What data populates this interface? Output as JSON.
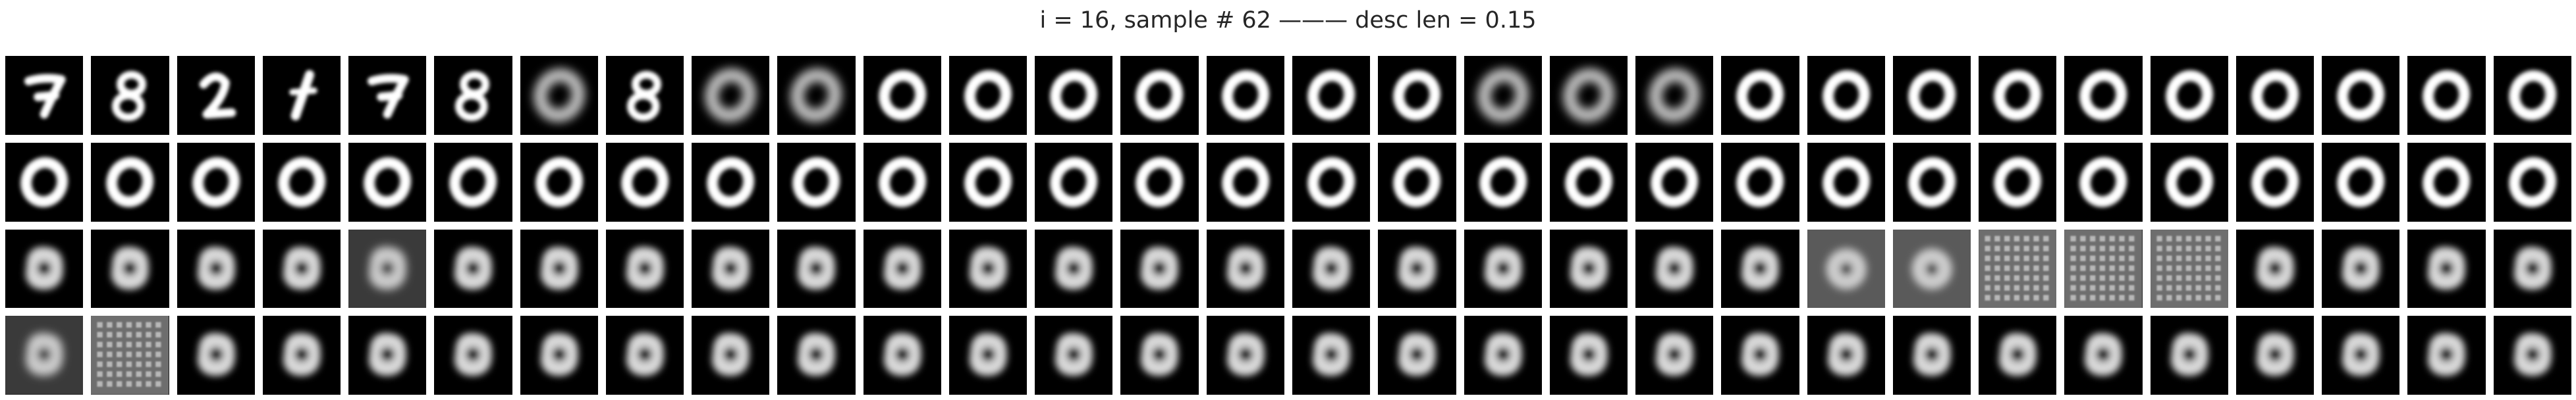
{
  "figure": {
    "title": "i = 16, sample # 62 ——— desc len = 0.15"
  },
  "grid": {
    "rows": 4,
    "cols": 30,
    "background": "#000000",
    "foreground": "#ffffff"
  },
  "panels": [
    [
      "seven",
      "eight",
      "two",
      "one",
      "seven",
      "eight",
      "zero-blur",
      "eight",
      "zero-blur",
      "zero-blur",
      "zero",
      "zero",
      "zero",
      "zero",
      "zero",
      "zero",
      "zero",
      "zero-blur",
      "zero-blur",
      "zero-blur",
      "zero",
      "zero",
      "zero",
      "zero",
      "zero",
      "zero",
      "zero",
      "zero",
      "zero",
      "zero"
    ],
    [
      "zero",
      "zero",
      "zero",
      "zero",
      "zero",
      "zero",
      "zero",
      "zero",
      "zero",
      "zero",
      "zero",
      "zero",
      "zero",
      "zero",
      "zero",
      "zero",
      "zero",
      "zero",
      "zero",
      "zero",
      "zero",
      "zero",
      "zero",
      "zero",
      "zero",
      "zero",
      "zero",
      "zero",
      "zero",
      "zero"
    ],
    [
      "blob",
      "blob",
      "blob",
      "blob",
      "blob-noisy",
      "blob",
      "blob",
      "blob",
      "blob",
      "blob",
      "blob",
      "blob",
      "blob",
      "blob",
      "blob",
      "blob",
      "blob",
      "blob",
      "blob",
      "blob",
      "blob",
      "noisy",
      "noisy",
      "grid",
      "grid",
      "grid",
      "blob",
      "blob",
      "blob",
      "blob"
    ],
    [
      "blob-noisy",
      "grid",
      "blob",
      "blob",
      "blob",
      "blob",
      "blob",
      "blob",
      "blob",
      "blob",
      "blob",
      "blob",
      "blob",
      "blob",
      "blob",
      "blob",
      "blob",
      "blob",
      "blob",
      "blob",
      "blob",
      "blob",
      "blob",
      "blob",
      "blob",
      "blob",
      "blob",
      "blob",
      "blob",
      "blob"
    ]
  ]
}
